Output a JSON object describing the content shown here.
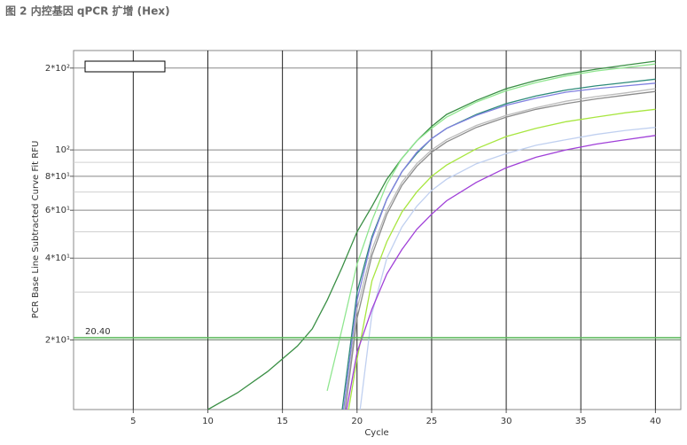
{
  "chart_data": {
    "type": "line",
    "title": "图 2 内控基因 qPCR 扩增 (Hex)",
    "x_label": "Cycle",
    "y_label": "PCR Base Line Subtracted Curve Fit RFU",
    "log_y": true,
    "grid": true,
    "xlim": [
      1,
      41.7
    ],
    "ylim": [
      11.1,
      232
    ],
    "xticks": [
      5,
      10,
      15,
      20,
      25,
      30,
      35,
      40
    ],
    "yticks": [
      {
        "value": 20,
        "label": "2*10¹"
      },
      {
        "value": 40,
        "label": "4*10¹"
      },
      {
        "value": 60,
        "label": "6*10¹"
      },
      {
        "value": 80,
        "label": "8*10¹"
      },
      {
        "value": 100,
        "label": "10²"
      },
      {
        "value": 200,
        "label": "2*10²"
      }
    ],
    "minor_yticks": [
      30,
      50,
      70,
      90
    ],
    "threshold": {
      "value": 20.4,
      "label": "20.40",
      "color": "#5cb85c"
    },
    "x": [
      10,
      12,
      14,
      16,
      17,
      18,
      19,
      20,
      21,
      22,
      23,
      24,
      25,
      26,
      28,
      30,
      32,
      34,
      36,
      38,
      40
    ],
    "series": [
      {
        "color": "#3a8f45",
        "values": [
          11.1,
          12.8,
          15.3,
          19,
          22,
          28,
          37,
          50,
          62,
          78,
          93,
          108,
          122,
          135,
          152,
          168,
          180,
          190,
          198,
          205,
          212
        ]
      },
      {
        "color": "#8fe68f",
        "values": [
          null,
          null,
          null,
          null,
          null,
          13,
          22,
          38,
          55,
          75,
          93,
          108,
          120,
          132,
          150,
          165,
          177,
          187,
          195,
          201,
          207
        ]
      },
      {
        "color": "#2e8b7a",
        "values": [
          null,
          null,
          null,
          null,
          null,
          null,
          11,
          30,
          48,
          66,
          83,
          97,
          110,
          120,
          135,
          148,
          158,
          166,
          172,
          177,
          182
        ]
      },
      {
        "color": "#8080e0",
        "values": [
          null,
          null,
          null,
          null,
          null,
          null,
          10,
          28,
          47,
          66,
          83,
          98,
          110,
          120,
          134,
          146,
          155,
          163,
          168,
          172,
          176
        ]
      },
      {
        "color": "#bbbbbb",
        "values": [
          null,
          null,
          null,
          null,
          null,
          null,
          9,
          26,
          43,
          60,
          76,
          89,
          100,
          109,
          123,
          134,
          143,
          151,
          157,
          162,
          168
        ]
      },
      {
        "color": "#8c8c8c",
        "values": [
          null,
          null,
          null,
          null,
          null,
          null,
          9,
          24,
          41,
          58,
          74,
          87,
          98,
          107,
          121,
          132,
          141,
          148,
          154,
          159,
          164
        ]
      },
      {
        "color": "#a8e640",
        "values": [
          null,
          null,
          null,
          null,
          null,
          null,
          8,
          17,
          33,
          46,
          59,
          70,
          80,
          88,
          101,
          112,
          120,
          127,
          132,
          137,
          141
        ]
      },
      {
        "color": "#c0d0f0",
        "values": [
          null,
          null,
          null,
          null,
          null,
          null,
          null,
          9,
          25,
          40,
          52,
          62,
          71,
          78,
          89,
          97,
          104,
          109,
          114,
          118,
          121
        ]
      },
      {
        "color": "#a040d8",
        "values": [
          null,
          null,
          null,
          null,
          null,
          null,
          9,
          18,
          26,
          35,
          43,
          51,
          58,
          65,
          76,
          86,
          94,
          100,
          105,
          109,
          113
        ]
      }
    ]
  }
}
